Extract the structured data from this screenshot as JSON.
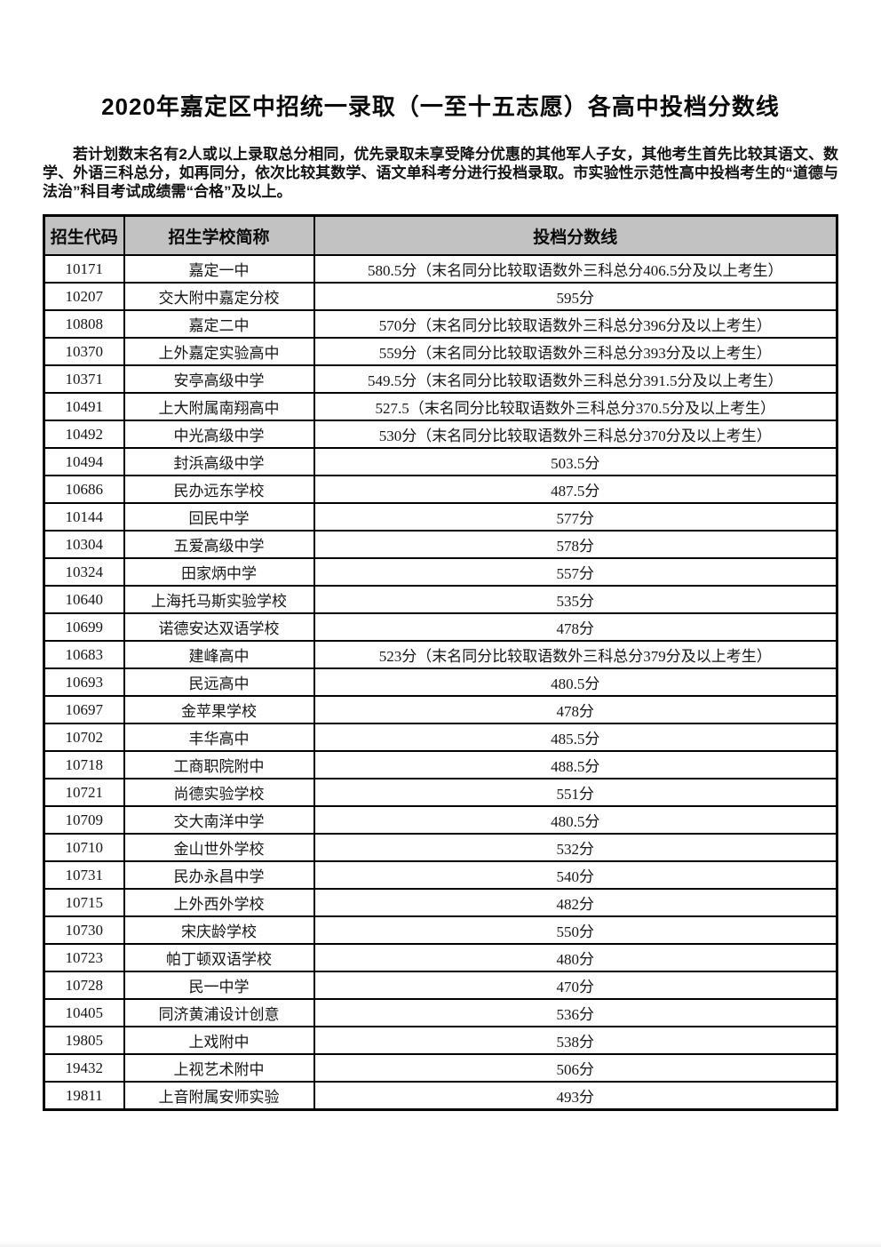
{
  "page": {
    "title": "2020年嘉定区中招统一录取（一至十五志愿）各高中投档分数线",
    "notice": "若计划数末名有2人或以上录取总分相同，优先录取未享受降分优惠的其他军人子女，其他考生首先比较其语文、数学、外语三科总分，如再同分，依次比较其数学、语文单科考分进行投档录取。市实验性示范性高中投档考生的“道德与法治”科目考试成绩需“合格”及以上。"
  },
  "colors": {
    "header_bg": "#c2c2c2",
    "border": "#000000",
    "text": "#111111"
  },
  "table": {
    "headers": [
      "招生代码",
      "招生学校简称",
      "投档分数线"
    ],
    "rows": [
      [
        "10171",
        "嘉定一中",
        "580.5分（末名同分比较取语数外三科总分406.5分及以上考生）"
      ],
      [
        "10207",
        "交大附中嘉定分校",
        "595分"
      ],
      [
        "10808",
        "嘉定二中",
        "570分（末名同分比较取语数外三科总分396分及以上考生）"
      ],
      [
        "10370",
        "上外嘉定实验高中",
        "559分（末名同分比较取语数外三科总分393分及以上考生）"
      ],
      [
        "10371",
        "安亭高级中学",
        "549.5分（末名同分比较取语数外三科总分391.5分及以上考生）"
      ],
      [
        "10491",
        "上大附属南翔高中",
        "527.5（末名同分比较取语数外三科总分370.5分及以上考生）"
      ],
      [
        "10492",
        "中光高级中学",
        "530分（末名同分比较取语数外三科总分370分及以上考生）"
      ],
      [
        "10494",
        "封浜高级中学",
        "503.5分"
      ],
      [
        "10686",
        "民办远东学校",
        "487.5分"
      ],
      [
        "10144",
        "回民中学",
        "577分"
      ],
      [
        "10304",
        "五爱高级中学",
        "578分"
      ],
      [
        "10324",
        "田家炳中学",
        "557分"
      ],
      [
        "10640",
        "上海托马斯实验学校",
        "535分"
      ],
      [
        "10699",
        "诺德安达双语学校",
        "478分"
      ],
      [
        "10683",
        "建峰高中",
        "523分（末名同分比较取语数外三科总分379分及以上考生）"
      ],
      [
        "10693",
        "民远高中",
        "480.5分"
      ],
      [
        "10697",
        "金苹果学校",
        "478分"
      ],
      [
        "10702",
        "丰华高中",
        "485.5分"
      ],
      [
        "10718",
        "工商职院附中",
        "488.5分"
      ],
      [
        "10721",
        "尚德实验学校",
        "551分"
      ],
      [
        "10709",
        "交大南洋中学",
        "480.5分"
      ],
      [
        "10710",
        "金山世外学校",
        "532分"
      ],
      [
        "10731",
        "民办永昌中学",
        "540分"
      ],
      [
        "10715",
        "上外西外学校",
        "482分"
      ],
      [
        "10730",
        "宋庆龄学校",
        "550分"
      ],
      [
        "10723",
        "帕丁顿双语学校",
        "480分"
      ],
      [
        "10728",
        "民一中学",
        "470分"
      ],
      [
        "10405",
        "同济黄浦设计创意",
        "536分"
      ],
      [
        "19805",
        "上戏附中",
        "538分"
      ],
      [
        "19432",
        "上视艺术附中",
        "506分"
      ],
      [
        "19811",
        "上音附属安师实验",
        "493分"
      ]
    ]
  }
}
